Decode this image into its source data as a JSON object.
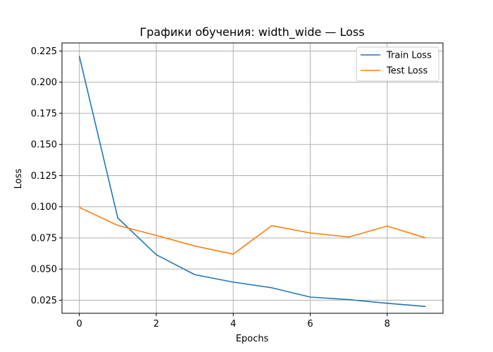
{
  "chart_data": {
    "type": "line",
    "title": "Графики обучения: width_wide — Loss",
    "xlabel": "Epochs",
    "ylabel": "Loss",
    "xlim": [
      -0.45,
      9.45
    ],
    "ylim": [
      0.0145,
      0.2315
    ],
    "xticks": [
      0,
      2,
      4,
      6,
      8
    ],
    "xtick_labels": [
      "0",
      "2",
      "4",
      "6",
      "8"
    ],
    "yticks": [
      0.025,
      0.05,
      0.075,
      0.1,
      0.125,
      0.15,
      0.175,
      0.2,
      0.225
    ],
    "ytick_labels": [
      "0.025",
      "0.050",
      "0.075",
      "0.100",
      "0.125",
      "0.150",
      "0.175",
      "0.200",
      "0.225"
    ],
    "grid": true,
    "legend_position": "top-right",
    "x": [
      0,
      1,
      2,
      3,
      4,
      5,
      6,
      7,
      8,
      9
    ],
    "series": [
      {
        "name": "Train Loss",
        "color": "#1f77b4",
        "values": [
          0.221,
          0.091,
          0.0615,
          0.0455,
          0.0395,
          0.035,
          0.0275,
          0.0255,
          0.0225,
          0.02
        ]
      },
      {
        "name": "Test Loss",
        "color": "#ff7f0e",
        "values": [
          0.0995,
          0.085,
          0.077,
          0.0685,
          0.062,
          0.0848,
          0.079,
          0.0757,
          0.0845,
          0.075
        ]
      }
    ]
  }
}
